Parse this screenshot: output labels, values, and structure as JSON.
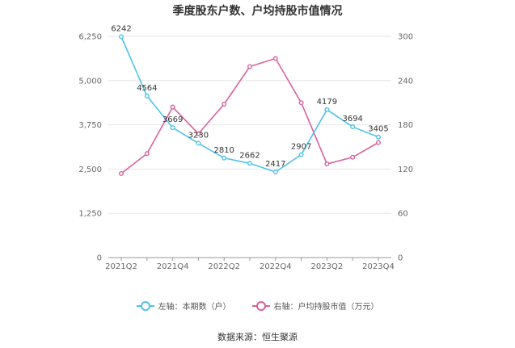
{
  "chart_data": {
    "type": "line",
    "title": "季度股东户数、户均持股市值情况",
    "categories": [
      "2021Q2",
      "2021Q3",
      "2021Q4",
      "2022Q1",
      "2022Q2",
      "2022Q3",
      "2022Q4",
      "2023Q1",
      "2023Q2",
      "2023Q3",
      "2023Q4"
    ],
    "x_tick_labels": [
      "2021Q2",
      "2021Q4",
      "2022Q2",
      "2022Q4",
      "2023Q2",
      "2023Q4"
    ],
    "left_axis": {
      "ylim": [
        0,
        6250
      ],
      "ticks": [
        "0",
        "1,250",
        "2,500",
        "3,750",
        "5,000",
        "6,250"
      ]
    },
    "right_axis": {
      "ylim": [
        0,
        300
      ],
      "ticks": [
        "0",
        "60",
        "120",
        "180",
        "240",
        "300"
      ]
    },
    "series": [
      {
        "name": "左轴：本期数（户）",
        "axis": "left",
        "color": "#4fc3ea",
        "values": [
          6242,
          4564,
          3669,
          3230,
          2810,
          2662,
          2417,
          2907,
          4179,
          3694,
          3405
        ],
        "labels": [
          "6242",
          "4564",
          "3669",
          "3230",
          "2810",
          "2662",
          "2417",
          "2907",
          "4179",
          "3694",
          "3405"
        ]
      },
      {
        "name": "右轴：户均持股市值（万元）",
        "axis": "right",
        "color": "#d9609e",
        "values": [
          114,
          141,
          204,
          168,
          208,
          259,
          270,
          210,
          127,
          136,
          156
        ]
      }
    ],
    "grid": true,
    "legend_position": "bottom"
  },
  "source_text": "数据来源：恒生聚源"
}
